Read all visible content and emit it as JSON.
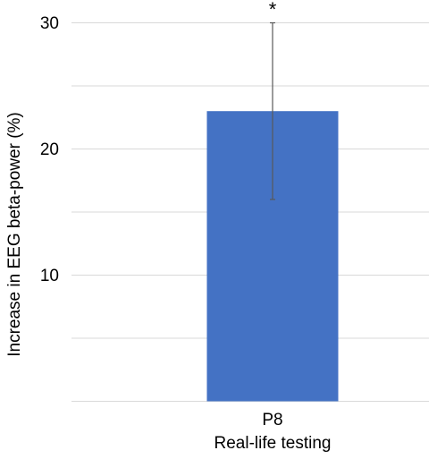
{
  "chart_data": {
    "type": "bar",
    "ylabel": "Increase in EEG beta-power (%)",
    "ylim": [
      0,
      32
    ],
    "yticks": [
      "10",
      "20",
      "30"
    ],
    "gridlines": [
      5,
      10,
      15,
      20,
      25,
      30
    ],
    "grid": true,
    "categories": [
      {
        "label": "P8",
        "sublabel": "Real-life testing"
      }
    ],
    "series": [
      {
        "values": [
          23
        ],
        "error_low": [
          16
        ],
        "error_high": [
          30
        ],
        "significance": [
          "*"
        ],
        "color": "#4472c4"
      }
    ],
    "colors": {
      "gridline": "#d9d9d9",
      "error_bar": "#595959"
    }
  }
}
